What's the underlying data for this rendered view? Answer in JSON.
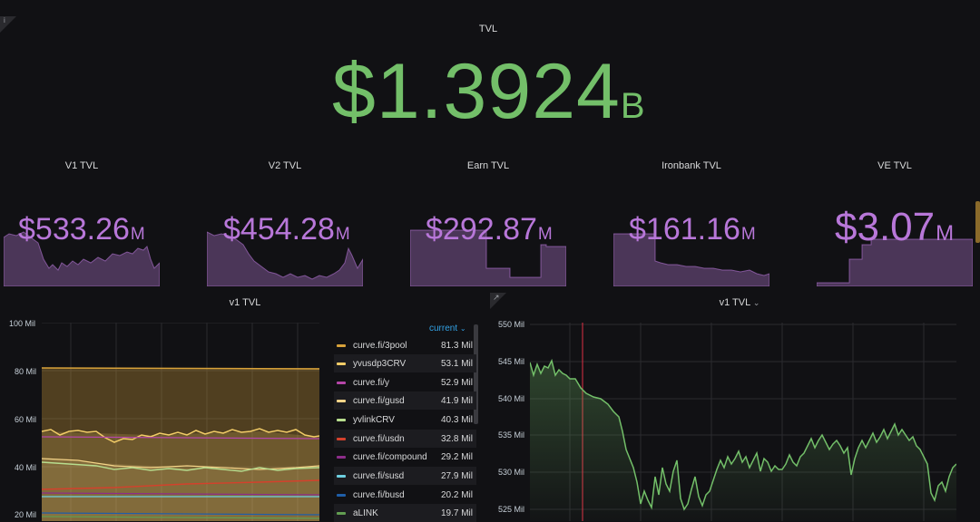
{
  "tvl_panel": {
    "title": "TVL",
    "value": "$1.3924",
    "unit": "B",
    "info_icon": "i"
  },
  "stats": [
    {
      "title": "V1 TVL",
      "value": "$533.26",
      "unit": "M"
    },
    {
      "title": "V2 TVL",
      "value": "$454.28",
      "unit": "M"
    },
    {
      "title": "Earn TVL",
      "value": "$292.87",
      "unit": "M"
    },
    {
      "title": "Ironbank TVL",
      "value": "$161.16",
      "unit": "M"
    },
    {
      "title": "VE TVL",
      "value": "$3.07",
      "unit": "M"
    }
  ],
  "colors": {
    "background": "#111114",
    "green": "#73bf69",
    "purple": "#b877d9",
    "legend_header": "#33a2e5"
  },
  "left_chart": {
    "title": "v1 TVL",
    "y_ticks": [
      "100 Mil",
      "80 Mil",
      "60 Mil",
      "40 Mil",
      "20 Mil"
    ],
    "legend_header": "current",
    "legend": [
      {
        "name": "curve.fi/3pool",
        "value": "81.3 Mil",
        "color": "#d8a23a"
      },
      {
        "name": "yvusdp3CRV",
        "value": "53.1 Mil",
        "color": "#f2cc67"
      },
      {
        "name": "curve.fi/y",
        "value": "52.9 Mil",
        "color": "#b546a8"
      },
      {
        "name": "curve.fi/gusd",
        "value": "41.9 Mil",
        "color": "#f5d488"
      },
      {
        "name": "yvlinkCRV",
        "value": "40.3 Mil",
        "color": "#b7dd8e"
      },
      {
        "name": "curve.fi/usdn",
        "value": "32.8 Mil",
        "color": "#d4412c"
      },
      {
        "name": "curve.fi/compound",
        "value": "29.2 Mil",
        "color": "#8d2d8a"
      },
      {
        "name": "curve.fi/susd",
        "value": "27.9 Mil",
        "color": "#6ed0e0"
      },
      {
        "name": "curve.fi/busd",
        "value": "20.2 Mil",
        "color": "#1f5ea8"
      },
      {
        "name": "aLINK",
        "value": "19.7 Mil",
        "color": "#629e51"
      }
    ]
  },
  "right_chart": {
    "title": "v1 TVL",
    "title_icon": "chevron-down-icon",
    "y_ticks": [
      "550 Mil",
      "545 Mil",
      "540 Mil",
      "535 Mil",
      "530 Mil",
      "525 Mil"
    ],
    "edit_icon": "↗"
  }
}
